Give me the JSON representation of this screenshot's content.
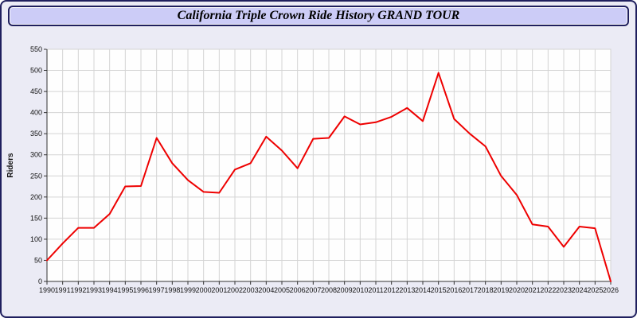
{
  "window": {
    "title": "California Triple Crown Ride History GRAND TOUR"
  },
  "colors": {
    "background": "#ebebf5",
    "border": "#1f1f5e",
    "title_bar_background": "#ccccf7",
    "plot_background": "#fefefe",
    "grid": "#d4d4d4",
    "axis": "#333333",
    "tick_label": "#111111",
    "line": "#ee0000"
  },
  "chart_data": {
    "type": "line",
    "title": "California Triple Crown Ride History GRAND TOUR",
    "xlabel": "",
    "ylabel": "Riders",
    "ylim": [
      0,
      550
    ],
    "ytick_step": 50,
    "grid": true,
    "legend": "none",
    "x": [
      1990,
      1991,
      1992,
      1993,
      1994,
      1995,
      1996,
      1997,
      1998,
      1999,
      2000,
      2001,
      2002,
      2003,
      2004,
      2005,
      2006,
      2007,
      2008,
      2009,
      2010,
      2011,
      2012,
      2013,
      2014,
      2015,
      2016,
      2017,
      2018,
      2019,
      2020,
      2021,
      2022,
      2023,
      2024,
      2025,
      2026
    ],
    "values": [
      50,
      90,
      127,
      127,
      160,
      225,
      226,
      340,
      280,
      240,
      212,
      210,
      265,
      280,
      343,
      310,
      268,
      338,
      340,
      391,
      372,
      377,
      390,
      411,
      380,
      494,
      385,
      350,
      320,
      250,
      205,
      135,
      130,
      82,
      130,
      126,
      0
    ]
  }
}
